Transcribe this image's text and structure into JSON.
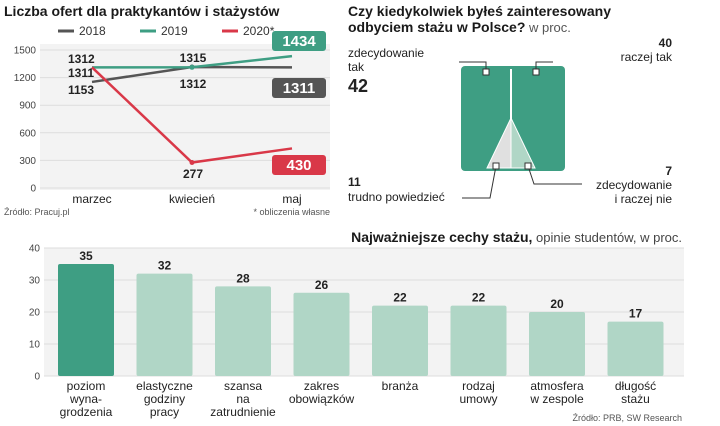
{
  "chart_data": [
    {
      "type": "line",
      "title": "Liczba ofert dla praktykantów i stażystów",
      "categories": [
        "marzec",
        "kwiecień",
        "maj"
      ],
      "ylim": [
        0,
        1500
      ],
      "yticks": [
        0,
        300,
        600,
        900,
        1200,
        1500
      ],
      "grid": true,
      "legend": "top",
      "series": [
        {
          "name": "2018",
          "values": [
            1153,
            1315,
            1311
          ],
          "color": "#555555"
        },
        {
          "name": "2019",
          "values": [
            1311,
            1312,
            1434
          ],
          "color": "#3e9e83"
        },
        {
          "name": "2020*",
          "values": [
            1312,
            277,
            430
          ],
          "color": "#d93848"
        }
      ],
      "labels_start": [
        "1312",
        "1311",
        "1153"
      ],
      "labels_mid": [
        "1315",
        "1312",
        "277"
      ],
      "labels_end": [
        "1434",
        "1311",
        "430"
      ],
      "source": "Źródło: Pracuj.pl",
      "note": "* obliczenia własne"
    },
    {
      "type": "pie",
      "title": "Czy kiedykolwiek byłeś zainteresowany",
      "title2": "odbyciem stażu w Polsce?",
      "unit": " w proc.",
      "slices": [
        {
          "label": "zdecydowanie tak",
          "label_line1": "zdecydowanie",
          "label_line2": "tak",
          "value": 42,
          "color": "#3e9e83"
        },
        {
          "label": "raczej tak",
          "value": 40,
          "color": "#3e9e83"
        },
        {
          "label": "zdecydowanie i raczej nie",
          "label_line1": "zdecydowanie",
          "label_line2": "i raczej nie",
          "value": 7,
          "color": "#b0d6c6"
        },
        {
          "label": "trudno powiedzieć",
          "value": 11,
          "color": "#e0e0e0"
        }
      ]
    },
    {
      "type": "bar",
      "title": "Najważniejsze cechy stażu,",
      "subtitle": " opinie studentów, w proc.",
      "ylim": [
        0,
        40
      ],
      "yticks": [
        0,
        10,
        20,
        30,
        40
      ],
      "categories": [
        [
          "poziom",
          "wyna-",
          "grodzenia"
        ],
        [
          "elastyczne",
          "godziny",
          "pracy"
        ],
        [
          "szansa",
          "na",
          "zatrudnienie"
        ],
        [
          "zakres",
          "obowiązków"
        ],
        [
          "branża"
        ],
        [
          "rodzaj",
          "umowy"
        ],
        [
          "atmosfera",
          "w zespole"
        ],
        [
          "długość",
          "stażu"
        ]
      ],
      "values": [
        35,
        32,
        28,
        26,
        22,
        22,
        20,
        17
      ],
      "colors": {
        "highlight": "#3e9e83",
        "normal": "#b0d6c6"
      },
      "source": "Źródło: PRB, SW Research"
    }
  ]
}
